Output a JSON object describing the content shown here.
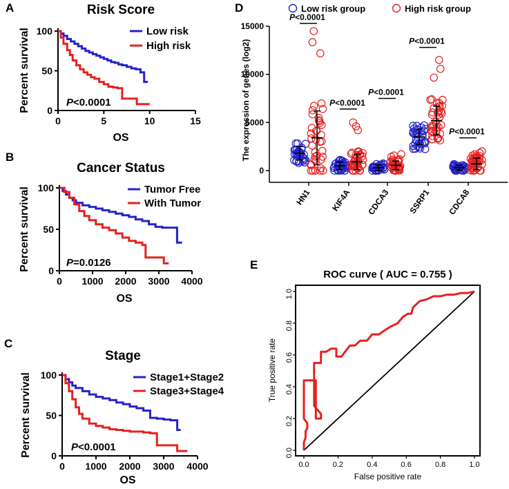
{
  "panels": {
    "a": {
      "letter": "A"
    },
    "b": {
      "letter": "B"
    },
    "c": {
      "letter": "C"
    },
    "d": {
      "letter": "D"
    },
    "e": {
      "letter": "E"
    }
  },
  "chart_data": [
    {
      "id": "A",
      "type": "line",
      "title": "Risk Score",
      "xlabel": "OS",
      "ylabel": "Percent survival",
      "xlim": [
        0,
        15
      ],
      "ylim": [
        0,
        100
      ],
      "xticks": [
        "0",
        "5",
        "10",
        "15"
      ],
      "yticks": [
        "0",
        "50",
        "100"
      ],
      "annotation_prefix": "P",
      "annotation_value": "<0.0001",
      "series": [
        {
          "name": "Low risk",
          "color": "#2323c8",
          "x": [
            0,
            0.3,
            0.6,
            1.0,
            1.4,
            1.8,
            2.2,
            2.6,
            3.0,
            3.4,
            3.8,
            4.2,
            4.6,
            5.0,
            5.4,
            5.8,
            6.2,
            6.6,
            7.0,
            7.5,
            8.0,
            8.5,
            9.0,
            9.4,
            9.8
          ],
          "y": [
            100,
            97,
            94,
            90,
            87,
            84,
            81,
            78,
            75,
            73,
            71,
            69,
            67,
            65,
            63,
            61,
            60,
            58,
            57,
            55,
            53,
            52,
            48,
            36,
            36
          ]
        },
        {
          "name": "High risk",
          "color": "#e62020",
          "x": [
            0,
            0.3,
            0.6,
            1.0,
            1.3,
            1.6,
            2.0,
            2.4,
            2.8,
            3.2,
            3.6,
            4.0,
            4.5,
            5.0,
            5.5,
            6.0,
            6.5,
            7.0,
            7.5,
            8.0,
            8.6,
            9.2,
            10.0
          ],
          "y": [
            100,
            92,
            84,
            76,
            70,
            63,
            57,
            52,
            48,
            45,
            42,
            40,
            36,
            33,
            30,
            29,
            28,
            15,
            15,
            15,
            8,
            8,
            8
          ]
        }
      ]
    },
    {
      "id": "B",
      "type": "line",
      "title": "Cancer Status",
      "xlabel": "OS",
      "ylabel": "Percent survival",
      "xlim": [
        0,
        4000
      ],
      "ylim": [
        0,
        100
      ],
      "xticks": [
        "0",
        "1000",
        "2000",
        "3000",
        "4000"
      ],
      "yticks": [
        "0",
        "50",
        "100"
      ],
      "annotation_prefix": "P",
      "annotation_value": "=0.0126",
      "series": [
        {
          "name": "Tumor Free",
          "color": "#2323c8",
          "x": [
            0,
            100,
            200,
            300,
            400,
            500,
            700,
            900,
            1100,
            1300,
            1500,
            1700,
            1900,
            2100,
            2300,
            2500,
            2700,
            2900,
            3100,
            3300,
            3500,
            3550,
            3700
          ],
          "y": [
            100,
            96,
            92,
            88,
            85,
            82,
            79,
            77,
            75,
            73,
            71,
            69,
            67,
            65,
            62,
            60,
            56,
            53,
            52,
            52,
            52,
            34,
            34
          ]
        },
        {
          "name": "With Tumor",
          "color": "#e62020",
          "x": [
            0,
            150,
            300,
            450,
            600,
            750,
            900,
            1100,
            1300,
            1500,
            1700,
            1900,
            2100,
            2300,
            2500,
            2600,
            2800,
            3000,
            3150,
            3300
          ],
          "y": [
            100,
            95,
            88,
            80,
            72,
            66,
            61,
            56,
            52,
            49,
            45,
            40,
            36,
            34,
            31,
            16,
            16,
            16,
            9,
            9
          ]
        }
      ]
    },
    {
      "id": "C",
      "type": "line",
      "title": "Stage",
      "xlabel": "OS",
      "ylabel": "Percent survival",
      "xlim": [
        0,
        4000
      ],
      "ylim": [
        0,
        100
      ],
      "xticks": [
        "0",
        "1000",
        "2000",
        "3000",
        "4000"
      ],
      "yticks": [
        "0",
        "50",
        "100"
      ],
      "annotation_prefix": "P",
      "annotation_value": "<0.0001",
      "series": [
        {
          "name": "Stage1+Stage2",
          "color": "#2323c8",
          "x": [
            0,
            100,
            200,
            300,
            400,
            600,
            800,
            1000,
            1200,
            1400,
            1600,
            1800,
            2000,
            2200,
            2400,
            2600,
            2800,
            3000,
            3200,
            3400,
            3500
          ],
          "y": [
            100,
            95,
            91,
            87,
            84,
            80,
            76,
            73,
            71,
            69,
            66,
            64,
            61,
            59,
            56,
            47,
            46,
            45,
            44,
            32,
            32
          ]
        },
        {
          "name": "Stage3+Stage4",
          "color": "#e62020",
          "x": [
            0,
            100,
            200,
            300,
            400,
            500,
            600,
            800,
            1000,
            1200,
            1400,
            1600,
            1800,
            2000,
            2200,
            2400,
            2600,
            2800,
            3000,
            3200,
            3400,
            3700
          ],
          "y": [
            100,
            90,
            80,
            70,
            60,
            52,
            46,
            40,
            37,
            35,
            33,
            32,
            31,
            30,
            30,
            29,
            28,
            13,
            13,
            13,
            6,
            6
          ]
        }
      ]
    },
    {
      "id": "D",
      "type": "scatter",
      "xlabel": "",
      "ylabel": "The expression of genes (log2)",
      "ylim": [
        0,
        15000
      ],
      "yticks": [
        "0",
        "5000",
        "10000",
        "15000"
      ],
      "categories": [
        "HN1",
        "KIF4A",
        "CDCA3",
        "SSRP1",
        "CDCA8"
      ],
      "series_names": [
        "Low risk group",
        "High risk group"
      ],
      "colors": {
        "low": "#2323c8",
        "high": "#e62020"
      },
      "p_prefix": "P",
      "p_values": [
        "<0.0001",
        "<0.0001",
        "<0.0001",
        "<0.0001",
        "<0.0001"
      ],
      "low_mean": [
        1800,
        500,
        300,
        3500,
        300
      ],
      "low_sd": [
        700,
        400,
        300,
        800,
        250
      ],
      "high_mean": [
        3400,
        900,
        550,
        5200,
        700
      ],
      "high_sd": [
        2800,
        800,
        450,
        1500,
        600
      ],
      "high_max": [
        14500,
        5000,
        1700,
        11500,
        2000
      ],
      "low_max": [
        3600,
        1800,
        1300,
        5200,
        1200
      ],
      "high_center": [
        6000,
        1200,
        600,
        5800,
        800
      ],
      "p_y": [
        15300,
        6400,
        7500,
        12800,
        3400
      ]
    },
    {
      "id": "E",
      "type": "line",
      "title_prefix": "ROC curve ( AUC = ",
      "title_value": "0.755",
      "title_suffix": " )",
      "xlabel": "False positive rate",
      "ylabel": "True positive rate",
      "xlim": [
        0,
        1
      ],
      "ylim": [
        0,
        1
      ],
      "xticks": [
        "0.0",
        "0.2",
        "0.4",
        "0.6",
        "0.8",
        "1.0"
      ],
      "yticks": [
        "0.0",
        "0.2",
        "0.4",
        "0.6",
        "0.8",
        "1.0"
      ],
      "auc": 0.755,
      "roc": {
        "color": "#e62020",
        "x": [
          0,
          0,
          0.01,
          0.01,
          0.02,
          0.02,
          0.0,
          0.0,
          0.02,
          0.04,
          0.07,
          0.07,
          0.1,
          0.1,
          0.06,
          0.06,
          0.1,
          0.1,
          0.13,
          0.16,
          0.19,
          0.19,
          0.22,
          0.27,
          0.3,
          0.33,
          0.37,
          0.4,
          0.44,
          0.48,
          0.51,
          0.55,
          0.58,
          0.61,
          0.63,
          0.64,
          0.68,
          0.72,
          0.76,
          0.8,
          0.84,
          0.88,
          0.92,
          0.96,
          1.0
        ],
        "y": [
          0,
          0.05,
          0.08,
          0.12,
          0.14,
          0.17,
          0.2,
          0.44,
          0.44,
          0.44,
          0.44,
          0.2,
          0.2,
          0.23,
          0.28,
          0.55,
          0.55,
          0.62,
          0.62,
          0.64,
          0.64,
          0.59,
          0.59,
          0.66,
          0.66,
          0.69,
          0.69,
          0.73,
          0.73,
          0.76,
          0.78,
          0.8,
          0.84,
          0.86,
          0.86,
          0.9,
          0.94,
          0.95,
          0.97,
          0.97,
          0.98,
          0.98,
          0.99,
          0.99,
          1.0
        ]
      },
      "diagonal_color": "#000000"
    }
  ]
}
